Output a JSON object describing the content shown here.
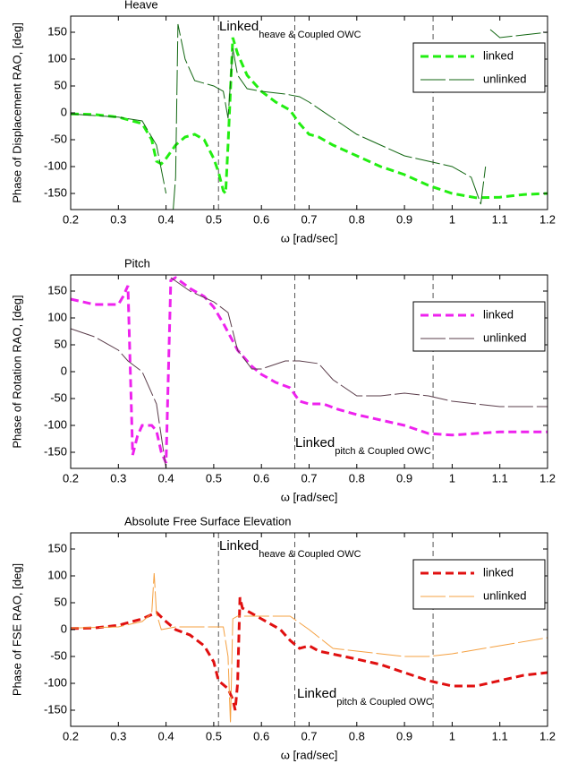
{
  "chart_data": [
    {
      "type": "line",
      "title": "Heave",
      "x_label": "ω [rad/sec]",
      "y_label": "Phase of Displacement RAO, [deg]",
      "xlim": [
        0.2,
        1.2
      ],
      "ylim": [
        -180,
        180
      ],
      "xticks": [
        0.2,
        0.3,
        0.4,
        0.5,
        0.6,
        0.7,
        0.8,
        0.9,
        1,
        1.1,
        1.2
      ],
      "yticks": [
        -150,
        -100,
        -50,
        0,
        50,
        100,
        150
      ],
      "vlines": [
        0.51,
        0.67,
        0.96
      ],
      "legend": "upper right",
      "annotations": [
        {
          "text": "Linked",
          "subscript": "heave & Coupled OWC"
        }
      ],
      "series": [
        {
          "name": "linked",
          "color": "#22ee11",
          "x": [
            0.2,
            0.25,
            0.3,
            0.35,
            0.37,
            0.38,
            0.39,
            0.4,
            0.42,
            0.44,
            0.46,
            0.48,
            0.5,
            0.51,
            0.52,
            0.525,
            0.53,
            0.54,
            0.55,
            0.57,
            0.6,
            0.63,
            0.66,
            0.68,
            0.7,
            0.72,
            0.75,
            0.8,
            0.85,
            0.9,
            0.95,
            1.0,
            1.05,
            1.1,
            1.15,
            1.2
          ],
          "values": [
            -2,
            -3,
            -8,
            -20,
            -50,
            -90,
            -95,
            -85,
            -60,
            -45,
            -40,
            -50,
            -85,
            -110,
            -145,
            -150,
            -60,
            140,
            110,
            70,
            40,
            20,
            5,
            -20,
            -40,
            -45,
            -60,
            -80,
            -100,
            -115,
            -135,
            -150,
            -158,
            -157,
            -152,
            -150
          ]
        },
        {
          "name": "unlinked",
          "color": "#116611",
          "x": [
            0.2,
            0.3,
            0.35,
            0.38,
            0.4,
            0.41,
            0.415,
            0.42,
            0.425,
            0.44,
            0.46,
            0.48,
            0.5,
            0.52,
            0.53,
            0.54,
            0.55,
            0.57,
            0.6,
            0.65,
            0.68,
            0.7,
            0.75,
            0.8,
            0.85,
            0.9,
            0.95,
            1.0,
            1.04,
            1.06,
            1.07,
            1.075,
            1.08,
            1.1,
            1.15,
            1.2
          ],
          "values": [
            -2,
            -8,
            -15,
            -60,
            -150,
            null,
            -180,
            -120,
            165,
            100,
            60,
            55,
            50,
            40,
            -10,
            120,
            70,
            45,
            40,
            35,
            30,
            20,
            -10,
            -40,
            -60,
            -80,
            -90,
            -100,
            -120,
            -170,
            -100,
            null,
            155,
            140,
            145,
            150
          ]
        }
      ]
    },
    {
      "type": "line",
      "title": "Pitch",
      "x_label": "ω [rad/sec]",
      "y_label": "Phase of Rotation RAO, [deg]",
      "xlim": [
        0.2,
        1.2
      ],
      "ylim": [
        -180,
        180
      ],
      "xticks": [
        0.2,
        0.3,
        0.4,
        0.5,
        0.6,
        0.7,
        0.8,
        0.9,
        1,
        1.1,
        1.2
      ],
      "yticks": [
        -150,
        -100,
        -50,
        0,
        50,
        100,
        150
      ],
      "vlines": [
        0.67,
        0.96
      ],
      "legend": "upper right",
      "annotations": [
        {
          "text": "Linked",
          "subscript": "pitch & Coupled OWC"
        }
      ],
      "series": [
        {
          "name": "linked",
          "color": "#ee22ee",
          "x": [
            0.2,
            0.25,
            0.3,
            0.31,
            0.32,
            0.33,
            0.34,
            0.35,
            0.37,
            0.38,
            0.39,
            0.4,
            0.41,
            0.42,
            0.45,
            0.48,
            0.5,
            0.52,
            0.55,
            0.58,
            0.6,
            0.63,
            0.66,
            0.68,
            0.7,
            0.73,
            0.76,
            0.8,
            0.85,
            0.9,
            0.95,
            1.0,
            1.05,
            1.1,
            1.2
          ],
          "values": [
            135,
            125,
            125,
            140,
            160,
            -155,
            -120,
            -100,
            -100,
            -110,
            -150,
            -170,
            170,
            175,
            155,
            140,
            120,
            90,
            40,
            10,
            -5,
            -20,
            -30,
            -55,
            -60,
            -60,
            -70,
            -80,
            -90,
            -100,
            -115,
            -118,
            -115,
            -112,
            -112
          ]
        },
        {
          "name": "unlinked",
          "color": "#5a3c4a",
          "x": [
            0.2,
            0.25,
            0.3,
            0.32,
            0.35,
            0.38,
            0.4,
            0.405,
            0.41,
            0.45,
            0.5,
            0.53,
            0.55,
            0.58,
            0.6,
            0.65,
            0.68,
            0.72,
            0.75,
            0.8,
            0.85,
            0.9,
            0.95,
            1.0,
            1.1,
            1.2
          ],
          "values": [
            80,
            65,
            40,
            20,
            0,
            -60,
            -180,
            null,
            175,
            150,
            130,
            110,
            40,
            5,
            5,
            20,
            20,
            15,
            -15,
            -45,
            -45,
            -40,
            -45,
            -55,
            -65,
            -65
          ]
        }
      ]
    },
    {
      "type": "line",
      "title": "Absolute Free Surface Elevation",
      "x_label": "ω [rad/sec]",
      "y_label": "Phase of FSE RAO, [deg]",
      "xlim": [
        0.2,
        1.2
      ],
      "ylim": [
        -180,
        180
      ],
      "xticks": [
        0.2,
        0.3,
        0.4,
        0.5,
        0.6,
        0.7,
        0.8,
        0.9,
        1,
        1.1,
        1.2
      ],
      "yticks": [
        -150,
        -100,
        -50,
        0,
        50,
        100,
        150
      ],
      "vlines": [
        0.51,
        0.67,
        0.96
      ],
      "legend": "upper right",
      "annotations": [
        {
          "text": "Linked",
          "subscript": "heave & Coupled OWC"
        },
        {
          "text": "Linked",
          "subscript": "pitch & Coupled OWC"
        }
      ],
      "series": [
        {
          "name": "linked",
          "color": "#e01010",
          "x": [
            0.2,
            0.25,
            0.3,
            0.35,
            0.38,
            0.4,
            0.42,
            0.45,
            0.48,
            0.5,
            0.51,
            0.53,
            0.54,
            0.545,
            0.55,
            0.555,
            0.56,
            0.6,
            0.64,
            0.66,
            0.68,
            0.7,
            0.72,
            0.8,
            0.85,
            0.9,
            0.95,
            1.0,
            1.05,
            1.1,
            1.15,
            1.2
          ],
          "values": [
            2,
            3,
            8,
            20,
            32,
            15,
            0,
            -10,
            -30,
            -60,
            -95,
            -110,
            -130,
            -150,
            -100,
            60,
            40,
            20,
            0,
            -20,
            -35,
            -30,
            -40,
            -55,
            -65,
            -80,
            -95,
            -105,
            -105,
            -95,
            -85,
            -80
          ]
        },
        {
          "name": "unlinked",
          "color": "#f5a040",
          "x": [
            0.2,
            0.3,
            0.35,
            0.37,
            0.375,
            0.38,
            0.39,
            0.42,
            0.5,
            0.52,
            0.53,
            0.535,
            0.54,
            0.55,
            0.6,
            0.66,
            0.7,
            0.75,
            0.8,
            0.9,
            0.95,
            1.0,
            1.1,
            1.2
          ],
          "values": [
            3,
            5,
            15,
            30,
            105,
            30,
            0,
            5,
            5,
            5,
            -50,
            -175,
            20,
            25,
            25,
            25,
            0,
            -35,
            -40,
            -50,
            -50,
            -45,
            -30,
            -15
          ]
        }
      ]
    }
  ]
}
